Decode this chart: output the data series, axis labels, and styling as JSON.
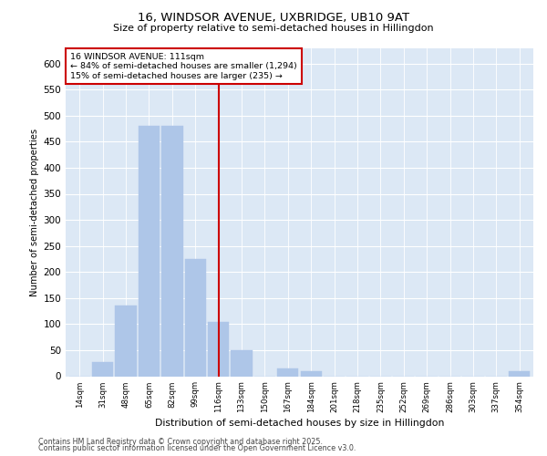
{
  "title_line1": "16, WINDSOR AVENUE, UXBRIDGE, UB10 9AT",
  "title_line2": "Size of property relative to semi-detached houses in Hillingdon",
  "xlabel": "Distribution of semi-detached houses by size in Hillingdon",
  "ylabel": "Number of semi-detached properties",
  "footnote1": "Contains HM Land Registry data © Crown copyright and database right 2025.",
  "footnote2": "Contains public sector information licensed under the Open Government Licence v3.0.",
  "annotation_title": "16 WINDSOR AVENUE: 111sqm",
  "annotation_line1": "← 84% of semi-detached houses are smaller (1,294)",
  "annotation_line2": "15% of semi-detached houses are larger (235) →",
  "categories": [
    "14sqm",
    "31sqm",
    "48sqm",
    "65sqm",
    "82sqm",
    "99sqm",
    "116sqm",
    "133sqm",
    "150sqm",
    "167sqm",
    "184sqm",
    "201sqm",
    "218sqm",
    "235sqm",
    "252sqm",
    "269sqm",
    "286sqm",
    "303sqm",
    "337sqm",
    "354sqm"
  ],
  "values": [
    0,
    27,
    135,
    480,
    480,
    225,
    105,
    50,
    0,
    15,
    10,
    0,
    0,
    0,
    0,
    0,
    0,
    0,
    0,
    10
  ],
  "bar_color": "#aec6e8",
  "vline_color": "#cc0000",
  "annotation_box_color": "#cc0000",
  "background_color": "#dce8f5",
  "ylim": [
    0,
    630
  ],
  "yticks": [
    0,
    50,
    100,
    150,
    200,
    250,
    300,
    350,
    400,
    450,
    500,
    550,
    600
  ],
  "vline_index": 6
}
